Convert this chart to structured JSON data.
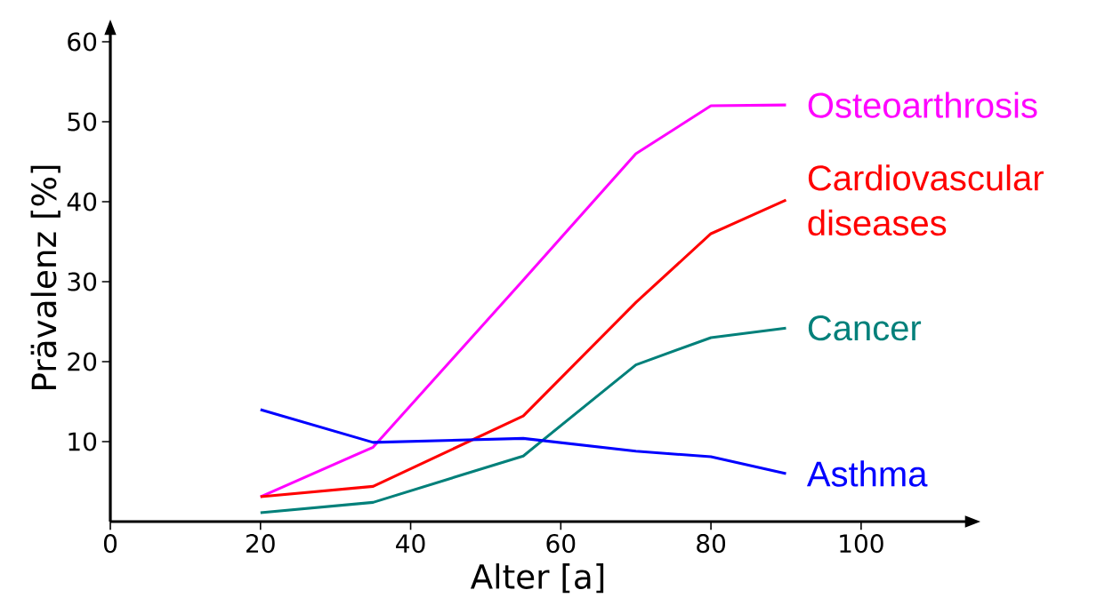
{
  "chart_data": {
    "type": "line",
    "xlabel": "Alter [a]",
    "ylabel": "Prävalenz [%]",
    "x": [
      20,
      35,
      55,
      70,
      80,
      90
    ],
    "series": [
      {
        "name": "Osteoarthrosis",
        "color": "#ff00ff",
        "values": [
          3.1,
          9.3,
          30.2,
          46,
          52,
          52.1
        ]
      },
      {
        "name": "Cardiovascular diseases",
        "color": "#ff0000",
        "values": [
          3.1,
          4.4,
          13.2,
          27.4,
          36,
          40.2
        ]
      },
      {
        "name": "Cancer",
        "color": "#00807a",
        "values": [
          1.1,
          2.4,
          8.2,
          19.6,
          23,
          24.2
        ]
      },
      {
        "name": "Asthma",
        "color": "#0000ff",
        "values": [
          14,
          9.9,
          10.4,
          8.8,
          8.1,
          6
        ]
      }
    ],
    "xlim": [
      0,
      114
    ],
    "ylim": [
      0,
      61
    ],
    "xticks": [
      {
        "value": 0,
        "label": "0"
      },
      20,
      40,
      60,
      80,
      100
    ],
    "yticks": [
      10,
      20,
      30,
      40,
      50,
      60
    ],
    "grid": false,
    "legend": false,
    "marker": "none",
    "line_style": "solid"
  }
}
